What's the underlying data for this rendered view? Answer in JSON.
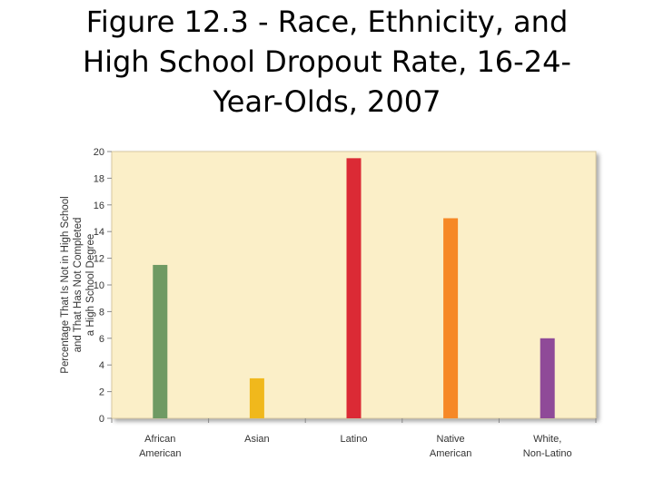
{
  "title": "Figure 12.3 - Race, Ethnicity, and High School Dropout Rate, 16-24-Year-Olds, 2007",
  "title_lines": [
    "Figure 12.3 - Race, Ethnicity, and",
    "High School Dropout Rate, 16-24-",
    "Year-Olds, 2007"
  ],
  "chart_data": {
    "type": "bar",
    "title": "Figure 12.3 - Race, Ethnicity, and High School Dropout Rate, 16-24-Year-Olds, 2007",
    "xlabel": "",
    "ylabel": "Percentage That Is Not in High School and That Has Not Completed a High School Degree",
    "ylabel_lines": [
      "Percentage That Is Not in High School",
      "and That Has Not Completed",
      "a High School Degree"
    ],
    "ylim": [
      0,
      20
    ],
    "yticks": [
      0,
      2,
      4,
      6,
      8,
      10,
      12,
      14,
      16,
      18,
      20
    ],
    "grid": false,
    "plot_background": "#fbefc8",
    "categories": [
      [
        "African",
        "American"
      ],
      [
        "Asian"
      ],
      [
        "Latino"
      ],
      [
        "Native",
        "American"
      ],
      [
        "White,",
        "Non-Latino"
      ]
    ],
    "values": [
      11.5,
      3,
      19.5,
      15,
      6
    ],
    "colors": [
      "#6f9a63",
      "#f0b81c",
      "#db2a35",
      "#f68826",
      "#8f4a98"
    ]
  }
}
